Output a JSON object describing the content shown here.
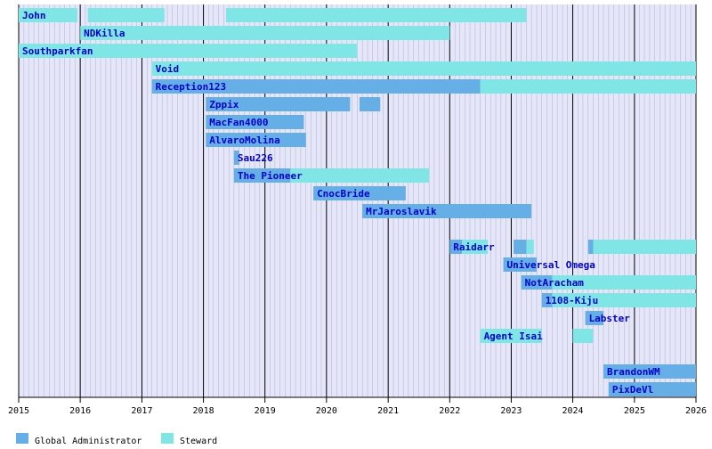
{
  "chart_data": {
    "type": "timeline",
    "colors": {
      "background": "#e6e6fa",
      "global_admin": "#66aee6",
      "steward": "#7fe5e5",
      "label": "#0000cc",
      "major_grid": "#000000",
      "minor_grid": "#b0b0c8"
    },
    "x_range": [
      "2015-01-01",
      "2026-01-01"
    ],
    "x_ticks": [
      "2015",
      "2016",
      "2017",
      "2018",
      "2019",
      "2020",
      "2021",
      "2022",
      "2023",
      "2024",
      "2025",
      "2026"
    ],
    "legend": [
      {
        "key": "global_admin",
        "label": "Global Administrator"
      },
      {
        "key": "steward",
        "label": "Steward"
      }
    ],
    "rows": [
      {
        "name": "John",
        "periods": [
          {
            "role": "steward",
            "start": "2015-01-01",
            "end": "2015-12-15"
          },
          {
            "role": "steward",
            "start": "2016-02-15",
            "end": "2017-05-15"
          },
          {
            "role": "steward",
            "start": "2018-05-15",
            "end": "2023-04-01"
          }
        ]
      },
      {
        "name": "NDKilla",
        "periods": [
          {
            "role": "steward",
            "start": "2016-01-01",
            "end": "2022-01-01"
          }
        ]
      },
      {
        "name": "Southparkfan",
        "periods": [
          {
            "role": "steward",
            "start": "2015-01-01",
            "end": "2020-07-01"
          }
        ]
      },
      {
        "name": "Void",
        "periods": [
          {
            "role": "steward",
            "start": "2017-03-01",
            "end": "2026-01-01"
          }
        ]
      },
      {
        "name": "Reception123",
        "periods": [
          {
            "role": "global_admin",
            "start": "2017-03-01",
            "end": "2022-07-01"
          },
          {
            "role": "steward",
            "start": "2022-07-01",
            "end": "2026-01-01"
          }
        ]
      },
      {
        "name": "Zppix",
        "periods": [
          {
            "role": "global_admin",
            "start": "2018-01-15",
            "end": "2020-05-20"
          },
          {
            "role": "global_admin",
            "start": "2020-07-15",
            "end": "2020-11-15"
          }
        ]
      },
      {
        "name": "MacFan4000",
        "periods": [
          {
            "role": "global_admin",
            "start": "2018-01-15",
            "end": "2019-08-20"
          }
        ]
      },
      {
        "name": "AlvaroMolina",
        "periods": [
          {
            "role": "global_admin",
            "start": "2018-01-15",
            "end": "2019-09-01"
          }
        ]
      },
      {
        "name": "Sau226",
        "periods": [
          {
            "role": "global_admin",
            "start": "2018-07-01",
            "end": "2018-08-01"
          }
        ]
      },
      {
        "name": "The Pioneer",
        "periods": [
          {
            "role": "global_admin",
            "start": "2018-07-01",
            "end": "2019-06-01"
          },
          {
            "role": "steward",
            "start": "2019-06-01",
            "end": "2021-09-01"
          }
        ]
      },
      {
        "name": "CnocBride",
        "periods": [
          {
            "role": "global_admin",
            "start": "2019-10-15",
            "end": "2021-04-15"
          }
        ]
      },
      {
        "name": "MrJaroslavik",
        "periods": [
          {
            "role": "global_admin",
            "start": "2020-08-01",
            "end": "2023-05-01"
          }
        ]
      },
      {
        "name": "",
        "periods": []
      },
      {
        "name": "Raidarr",
        "periods": [
          {
            "role": "global_admin",
            "start": "2022-01-01",
            "end": "2022-03-15"
          },
          {
            "role": "steward",
            "start": "2022-03-15",
            "end": "2022-08-15"
          },
          {
            "role": "global_admin",
            "start": "2023-01-15",
            "end": "2023-04-01"
          },
          {
            "role": "steward",
            "start": "2023-04-01",
            "end": "2023-05-15"
          },
          {
            "role": "global_admin",
            "start": "2024-04-01",
            "end": "2024-05-01"
          },
          {
            "role": "steward",
            "start": "2024-05-01",
            "end": "2026-01-01"
          }
        ]
      },
      {
        "name": "Universal Omega",
        "periods": [
          {
            "role": "global_admin",
            "start": "2022-11-15",
            "end": "2023-06-01"
          }
        ]
      },
      {
        "name": "NotAracham",
        "periods": [
          {
            "role": "global_admin",
            "start": "2023-03-01",
            "end": "2023-09-01"
          },
          {
            "role": "steward",
            "start": "2023-09-01",
            "end": "2026-01-01"
          }
        ]
      },
      {
        "name": "1108-Kiju",
        "periods": [
          {
            "role": "global_admin",
            "start": "2023-07-01",
            "end": "2023-09-01"
          },
          {
            "role": "steward",
            "start": "2023-09-01",
            "end": "2026-01-01"
          }
        ]
      },
      {
        "name": "Labster",
        "periods": [
          {
            "role": "global_admin",
            "start": "2024-03-15",
            "end": "2024-07-01"
          }
        ]
      },
      {
        "name": "Agent Isai",
        "periods": [
          {
            "role": "steward",
            "start": "2022-07-01",
            "end": "2023-07-01"
          },
          {
            "role": "steward",
            "start": "2024-01-01",
            "end": "2024-05-01"
          }
        ]
      },
      {
        "name": "",
        "periods": []
      },
      {
        "name": "BrandonWM",
        "periods": [
          {
            "role": "global_admin",
            "start": "2024-07-01",
            "end": "2026-01-01"
          }
        ]
      },
      {
        "name": "PixDeVl",
        "periods": [
          {
            "role": "global_admin",
            "start": "2024-08-01",
            "end": "2026-01-01"
          }
        ]
      }
    ]
  }
}
